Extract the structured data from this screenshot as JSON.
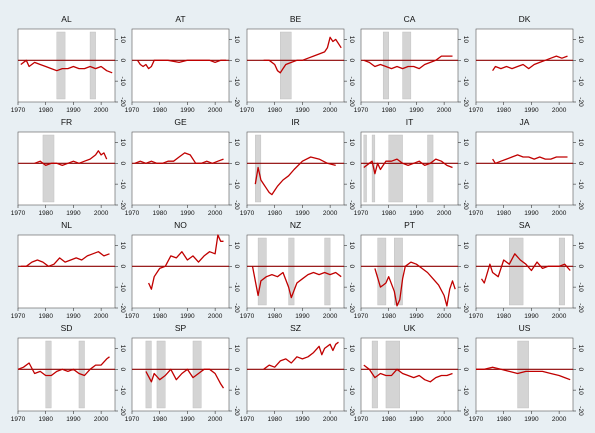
{
  "chart_data": {
    "type": "line",
    "layout": "small-multiples",
    "rows": 4,
    "cols": 5,
    "xlim": [
      1970,
      2005
    ],
    "ylim": [
      -20,
      15
    ],
    "xticks": [
      1970,
      1980,
      1990,
      2000
    ],
    "yticks": [
      -20,
      -10,
      0,
      10
    ],
    "reference_line": 0,
    "colors": {
      "background": "#e8eff3",
      "panel": "#ffffff",
      "series": "#c00000",
      "zero_line": "#8b0000",
      "shading": "#d4d4d4"
    },
    "panels": [
      {
        "title": "AL",
        "x": [
          1971,
          1973,
          1974,
          1976,
          1978,
          1980,
          1982,
          1984,
          1986,
          1988,
          1990,
          1992,
          1994,
          1996,
          1998,
          2000,
          2002,
          2004
        ],
        "y": [
          -2,
          0,
          -3,
          -1,
          -2,
          -3,
          -4,
          -5,
          -4,
          -4,
          -3,
          -4,
          -4,
          -3,
          -4,
          -3,
          -5,
          -6
        ],
        "shaded": [
          [
            1984,
            1987
          ],
          [
            1996,
            1998
          ]
        ]
      },
      {
        "title": "AT",
        "x": [
          1972,
          1973,
          1974,
          1975,
          1976,
          1977,
          1978,
          1980,
          1983,
          1987,
          1990,
          1994,
          1998,
          2000,
          2002,
          2004
        ],
        "y": [
          0,
          -2,
          -3,
          -2,
          -4,
          -3,
          0,
          0,
          0,
          -1,
          0,
          0,
          0,
          -1,
          0,
          0
        ],
        "shaded": []
      },
      {
        "title": "BE",
        "x": [
          1976,
          1978,
          1980,
          1981,
          1982,
          1983,
          1984,
          1986,
          1988,
          1990,
          1992,
          1994,
          1996,
          1998,
          1999,
          2000,
          2001,
          2002,
          2004
        ],
        "y": [
          0,
          0,
          -2,
          -5,
          -6,
          -4,
          -2,
          -1,
          0,
          0,
          1,
          2,
          3,
          4,
          6,
          11,
          9,
          10,
          6
        ],
        "shaded": [
          [
            1982,
            1986
          ]
        ]
      },
      {
        "title": "CA",
        "x": [
          1971,
          1973,
          1975,
          1977,
          1979,
          1981,
          1983,
          1985,
          1987,
          1989,
          1991,
          1993,
          1995,
          1997,
          1999,
          2001,
          2003
        ],
        "y": [
          0,
          -1,
          -3,
          -2,
          -3,
          -4,
          -3,
          -4,
          -3,
          -3,
          -4,
          -2,
          -1,
          0,
          2,
          2,
          2
        ],
        "shaded": [
          [
            1978,
            1980
          ],
          [
            1985,
            1988
          ]
        ]
      },
      {
        "title": "DK",
        "x": [
          1976,
          1977,
          1979,
          1981,
          1983,
          1985,
          1987,
          1989,
          1991,
          1993,
          1995,
          1997,
          1999,
          2001,
          2003
        ],
        "y": [
          -5,
          -3,
          -4,
          -3,
          -4,
          -3,
          -2,
          -4,
          -2,
          -1,
          0,
          1,
          2,
          1,
          2
        ],
        "shaded": []
      },
      {
        "title": "FR",
        "x": [
          1976,
          1978,
          1980,
          1982,
          1984,
          1986,
          1988,
          1990,
          1992,
          1994,
          1996,
          1998,
          1999,
          2000,
          2001,
          2002
        ],
        "y": [
          0,
          1,
          -1,
          0,
          0,
          -1,
          0,
          1,
          0,
          1,
          2,
          4,
          6,
          4,
          5,
          2
        ],
        "shaded": [
          [
            1979,
            1983
          ]
        ]
      },
      {
        "title": "GE",
        "x": [
          1971,
          1973,
          1975,
          1977,
          1979,
          1981,
          1983,
          1985,
          1987,
          1989,
          1991,
          1993,
          1995,
          1997,
          1999,
          2001,
          2003
        ],
        "y": [
          0,
          1,
          0,
          1,
          0,
          0,
          1,
          1,
          3,
          5,
          4,
          0,
          0,
          1,
          0,
          1,
          2
        ],
        "shaded": []
      },
      {
        "title": "IR",
        "x": [
          1973,
          1974,
          1975,
          1976,
          1977,
          1978,
          1979,
          1980,
          1981,
          1983,
          1985,
          1987,
          1990,
          1993,
          1996,
          1999,
          2002
        ],
        "y": [
          -10,
          -2,
          -8,
          -10,
          -12,
          -14,
          -15,
          -13,
          -11,
          -8,
          -6,
          -3,
          1,
          3,
          2,
          0,
          -1
        ],
        "shaded": [
          [
            1973,
            1975
          ]
        ]
      },
      {
        "title": "IT",
        "x": [
          1971,
          1973,
          1974,
          1975,
          1976,
          1977,
          1979,
          1981,
          1983,
          1985,
          1987,
          1989,
          1991,
          1993,
          1995,
          1997,
          1999,
          2001,
          2003
        ],
        "y": [
          -2,
          0,
          1,
          -5,
          0,
          -3,
          1,
          1,
          2,
          0,
          -1,
          0,
          1,
          -1,
          0,
          2,
          1,
          -1,
          -2
        ],
        "shaded": [
          [
            1971,
            1972
          ],
          [
            1974,
            1975
          ],
          [
            1980,
            1985
          ],
          [
            1994,
            1996
          ]
        ]
      },
      {
        "title": "JA",
        "x": [
          1976,
          1977,
          1979,
          1981,
          1983,
          1985,
          1987,
          1989,
          1991,
          1993,
          1995,
          1997,
          1999,
          2001,
          2003
        ],
        "y": [
          2,
          0,
          1,
          2,
          3,
          4,
          3,
          3,
          2,
          3,
          2,
          2,
          3,
          3,
          3
        ],
        "shaded": []
      },
      {
        "title": "NL",
        "x": [
          1971,
          1973,
          1975,
          1977,
          1979,
          1981,
          1983,
          1985,
          1987,
          1989,
          1991,
          1993,
          1995,
          1997,
          1999,
          2001,
          2003
        ],
        "y": [
          0,
          0,
          2,
          3,
          2,
          0,
          1,
          4,
          2,
          3,
          4,
          3,
          5,
          6,
          7,
          5,
          6
        ],
        "shaded": []
      },
      {
        "title": "NO",
        "x": [
          1976,
          1977,
          1978,
          1980,
          1982,
          1984,
          1986,
          1988,
          1990,
          1992,
          1994,
          1996,
          1998,
          2000,
          2001,
          2002,
          2003
        ],
        "y": [
          -8,
          -11,
          -5,
          -1,
          0,
          5,
          4,
          7,
          3,
          5,
          2,
          5,
          7,
          6,
          15,
          12,
          12
        ],
        "shaded": []
      },
      {
        "title": "NZ",
        "x": [
          1972,
          1974,
          1975,
          1977,
          1979,
          1981,
          1983,
          1985,
          1986,
          1988,
          1990,
          1992,
          1994,
          1996,
          1998,
          2000,
          2002,
          2004
        ],
        "y": [
          0,
          -14,
          -7,
          -5,
          -4,
          -5,
          -3,
          -10,
          -15,
          -8,
          -6,
          -4,
          -3,
          -4,
          -3,
          -4,
          -3,
          -5
        ],
        "shaded": [
          [
            1974,
            1977
          ],
          [
            1985,
            1987
          ],
          [
            1998,
            2000
          ]
        ]
      },
      {
        "title": "PT",
        "x": [
          1975,
          1977,
          1978,
          1979,
          1980,
          1982,
          1983,
          1984,
          1985,
          1986,
          1988,
          1990,
          1992,
          1994,
          1996,
          1998,
          2000,
          2001,
          2002,
          2003,
          2004
        ],
        "y": [
          -1,
          -10,
          -9,
          -8,
          -5,
          -12,
          -19,
          -16,
          -6,
          0,
          2,
          1,
          -1,
          -3,
          -6,
          -9,
          -14,
          -19,
          -11,
          -7,
          -11
        ],
        "shaded": [
          [
            1976,
            1979
          ],
          [
            1982,
            1985
          ]
        ]
      },
      {
        "title": "SA",
        "x": [
          1972,
          1973,
          1975,
          1976,
          1978,
          1980,
          1982,
          1984,
          1986,
          1988,
          1990,
          1992,
          1994,
          1996,
          1998,
          2000,
          2002,
          2004
        ],
        "y": [
          -6,
          -8,
          1,
          -3,
          -5,
          3,
          1,
          6,
          3,
          1,
          -2,
          2,
          -1,
          0,
          0,
          0,
          1,
          -2
        ],
        "shaded": [
          [
            1982,
            1987
          ],
          [
            2000,
            2002
          ]
        ]
      },
      {
        "title": "SD",
        "x": [
          1970,
          1972,
          1974,
          1976,
          1978,
          1980,
          1982,
          1984,
          1986,
          1988,
          1990,
          1992,
          1994,
          1996,
          1998,
          2000,
          2002,
          2003
        ],
        "y": [
          0,
          1,
          3,
          -2,
          -1,
          -3,
          -3,
          -1,
          0,
          -1,
          0,
          -2,
          -3,
          0,
          2,
          2,
          5,
          6
        ],
        "shaded": [
          [
            1980,
            1982
          ],
          [
            1992,
            1994
          ]
        ]
      },
      {
        "title": "SP",
        "x": [
          1975,
          1977,
          1978,
          1980,
          1982,
          1984,
          1986,
          1988,
          1990,
          1992,
          1994,
          1996,
          1998,
          2000,
          2002,
          2003
        ],
        "y": [
          -1,
          -6,
          -2,
          -5,
          -3,
          0,
          -5,
          -2,
          0,
          -4,
          -2,
          0,
          0,
          -2,
          -7,
          -9
        ],
        "shaded": [
          [
            1975,
            1977
          ],
          [
            1979,
            1982
          ],
          [
            1992,
            1995
          ]
        ]
      },
      {
        "title": "SZ",
        "x": [
          1976,
          1978,
          1980,
          1982,
          1984,
          1986,
          1988,
          1990,
          1992,
          1994,
          1996,
          1997,
          1998,
          2000,
          2001,
          2002,
          2003
        ],
        "y": [
          0,
          2,
          1,
          4,
          5,
          3,
          6,
          5,
          6,
          8,
          11,
          7,
          10,
          12,
          9,
          12,
          13
        ],
        "shaded": []
      },
      {
        "title": "UK",
        "x": [
          1971,
          1973,
          1975,
          1977,
          1979,
          1981,
          1983,
          1985,
          1987,
          1989,
          1991,
          1993,
          1995,
          1997,
          1999,
          2001,
          2003
        ],
        "y": [
          2,
          0,
          -4,
          -2,
          -3,
          -3,
          0,
          -2,
          -3,
          -4,
          -3,
          -5,
          -6,
          -4,
          -3,
          -3,
          -2
        ],
        "shaded": [
          [
            1974,
            1976
          ],
          [
            1979,
            1984
          ]
        ]
      },
      {
        "title": "US",
        "x": [
          1970,
          1973,
          1976,
          1979,
          1982,
          1985,
          1988,
          1991,
          1994,
          1997,
          2000,
          2002,
          2004
        ],
        "y": [
          0,
          0,
          1,
          0,
          -1,
          -2,
          -1,
          -1,
          -1,
          -2,
          -3,
          -4,
          -5
        ],
        "shaded": [
          [
            1985,
            1989
          ]
        ]
      }
    ]
  }
}
